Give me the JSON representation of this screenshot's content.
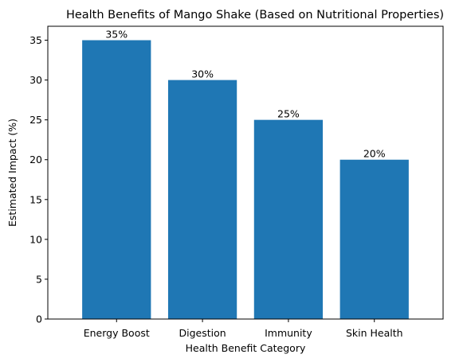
{
  "chart_data": {
    "type": "bar",
    "title": "Health Benefits of Mango Shake (Based on Nutritional Properties)",
    "xlabel": "Health Benefit Category",
    "ylabel": "Estimated Impact (%)",
    "categories": [
      "Energy Boost",
      "Digestion",
      "Immunity",
      "Skin Health"
    ],
    "values": [
      35,
      30,
      25,
      20
    ],
    "data_labels": [
      "35%",
      "30%",
      "25%",
      "20%"
    ],
    "yticks": [
      0,
      5,
      10,
      15,
      20,
      25,
      30,
      35
    ],
    "ylim": [
      0,
      36.75
    ],
    "bar_color": "#1f77b4",
    "grid": false,
    "legend": "none"
  }
}
